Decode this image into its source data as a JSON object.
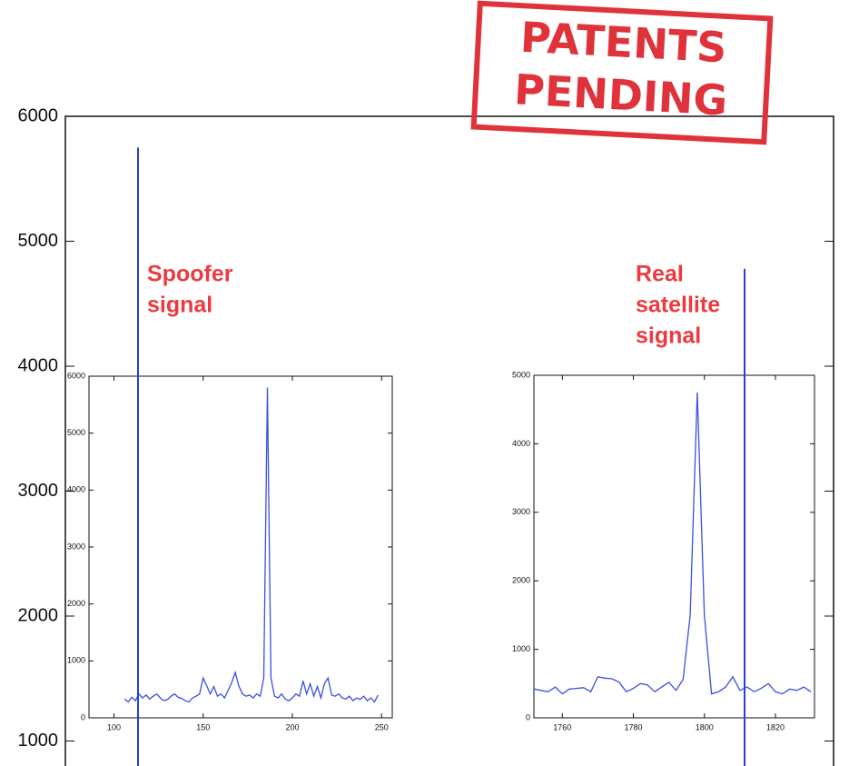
{
  "stamp": [
    "PATENTS",
    "PENDING"
  ],
  "chart_data": [
    {
      "type": "spike",
      "ylim": [
        800,
        6000
      ],
      "yticks": [
        1000,
        2000,
        3000,
        4000,
        5000,
        6000
      ],
      "categories": [
        null,
        null
      ],
      "values": [
        5750,
        4780
      ],
      "color": "#2a3fd6",
      "annotations": [
        [
          "Spoofer",
          "signal"
        ],
        [
          "Real",
          "satellite",
          "signal"
        ]
      ]
    },
    {
      "type": "line",
      "xlim": [
        86,
        256
      ],
      "ylim": [
        0,
        6000
      ],
      "xticks": [
        100,
        150,
        200,
        250
      ],
      "yticks": [
        0,
        1000,
        2000,
        3000,
        4000,
        5000,
        6000
      ],
      "x": [
        106,
        108,
        110,
        112,
        114,
        116,
        118,
        120,
        122,
        124,
        126,
        128,
        130,
        132,
        134,
        136,
        138,
        140,
        142,
        144,
        146,
        148,
        150,
        152,
        154,
        156,
        158,
        160,
        162,
        164,
        166,
        168,
        170,
        172,
        174,
        176,
        178,
        180,
        182,
        184,
        186,
        188,
        190,
        192,
        194,
        196,
        198,
        200,
        202,
        204,
        206,
        208,
        210,
        212,
        214,
        216,
        218,
        220,
        222,
        224,
        226,
        228,
        230,
        232,
        234,
        236,
        238,
        240,
        242,
        244,
        246,
        248
      ],
      "series": [
        {
          "color": "#3a4fe0",
          "values": [
            330,
            280,
            360,
            300,
            420,
            350,
            400,
            330,
            380,
            420,
            350,
            300,
            320,
            380,
            420,
            360,
            340,
            300,
            280,
            350,
            380,
            420,
            700,
            560,
            420,
            550,
            380,
            420,
            350,
            480,
            620,
            800,
            560,
            420,
            380,
            400,
            350,
            420,
            380,
            700,
            5800,
            700,
            380,
            350,
            420,
            330,
            300,
            350,
            420,
            380,
            650,
            420,
            600,
            380,
            550,
            350,
            600,
            700,
            400,
            380,
            420,
            350,
            330,
            380,
            300,
            350,
            320,
            380,
            300,
            350,
            280,
            400
          ]
        }
      ]
    },
    {
      "type": "line",
      "xlim": [
        1752,
        1831
      ],
      "ylim": [
        0,
        5000
      ],
      "xticks": [
        1760,
        1780,
        1800,
        1820
      ],
      "yticks": [
        0,
        1000,
        2000,
        3000,
        4000,
        5000
      ],
      "x": [
        1752,
        1754,
        1756,
        1758,
        1760,
        1762,
        1764,
        1766,
        1768,
        1770,
        1772,
        1774,
        1776,
        1778,
        1780,
        1782,
        1784,
        1786,
        1788,
        1790,
        1792,
        1794,
        1796,
        1798,
        1800,
        1802,
        1804,
        1806,
        1808,
        1810,
        1812,
        1814,
        1816,
        1818,
        1820,
        1822,
        1824,
        1826,
        1828,
        1830
      ],
      "series": [
        {
          "color": "#3a4fe0",
          "values": [
            420,
            400,
            380,
            450,
            350,
            420,
            430,
            440,
            380,
            600,
            580,
            570,
            520,
            380,
            430,
            500,
            480,
            380,
            450,
            520,
            400,
            560,
            1500,
            4750,
            1500,
            350,
            380,
            450,
            600,
            400,
            450,
            380,
            430,
            500,
            380,
            350,
            420,
            400,
            450,
            380
          ]
        }
      ]
    }
  ]
}
